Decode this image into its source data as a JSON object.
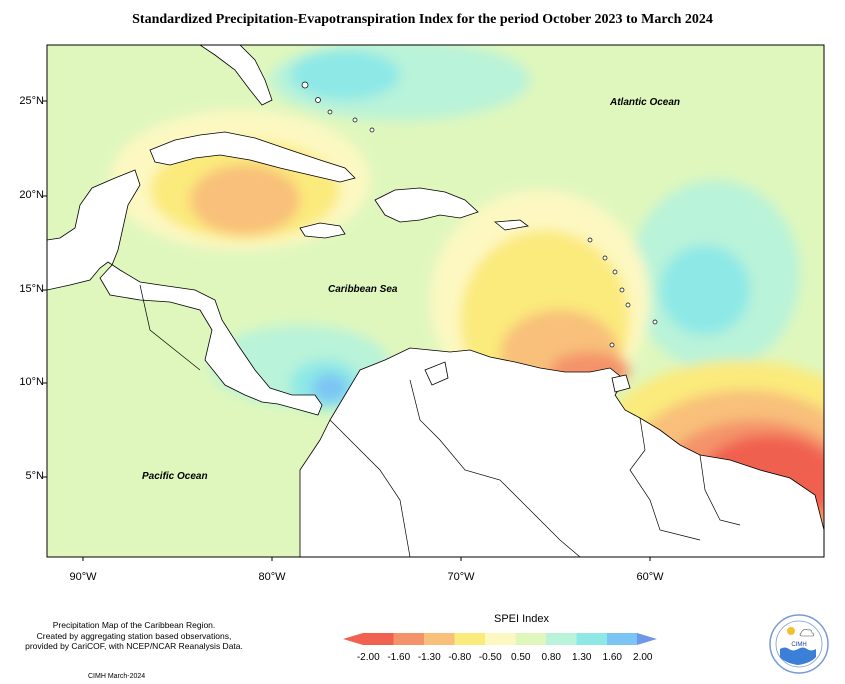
{
  "title": "Standardized Precipitation-Evapotranspiration Index for the period October 2023 to March 2024",
  "latitude_labels": [
    "25°N",
    "20°N",
    "15°N",
    "10°N",
    "5°N"
  ],
  "longitude_labels": [
    "90°W",
    "80°W",
    "70°W",
    "60°W"
  ],
  "place_labels": {
    "atlantic": "Atlantic Ocean",
    "caribbean": "Caribbean Sea",
    "pacific": "Pacific Ocean"
  },
  "footnote": {
    "line1": "Precipitation Map of the Caribbean Region.",
    "line2": "Created by aggregating station based observations,",
    "line3": "provided by CariCOF, with NCEP/NCAR Reanalysis Data."
  },
  "credit": "CIMH March-2024",
  "legend": {
    "title": "SPEI Index",
    "labels": [
      "-2.00",
      "-1.60",
      "-1.30",
      "-0.80",
      "-0.50",
      "0.50",
      "0.80",
      "1.30",
      "1.60",
      "2.00"
    ],
    "colors": [
      "#f0614f",
      "#f4936a",
      "#f8c07a",
      "#fbea7c",
      "#fdf8c2",
      "#dff7bd",
      "#b9f3d9",
      "#8de8e6",
      "#7cc4f4",
      "#6f97e8",
      "#5a6fd8"
    ]
  },
  "logo": {
    "name": "CIMH"
  },
  "colors": {
    "background": "#dff7bd",
    "dry_strong": "#f0614f",
    "dry_moderate": "#f4936a",
    "dry_mild": "#f8c07a",
    "dry_light": "#fbea7c",
    "wet_light": "#b9f3d9",
    "wet_moderate": "#8de8e6",
    "wet_strong": "#7cc4f4",
    "wet_extreme": "#6f97e8",
    "land": "#ffffff"
  }
}
